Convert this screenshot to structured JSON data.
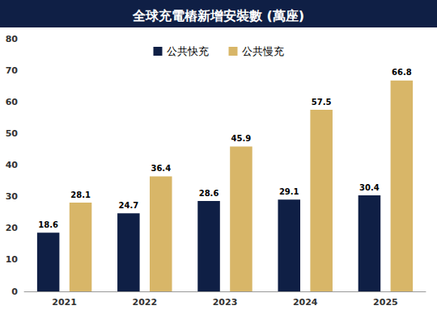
{
  "chart_data": {
    "type": "bar",
    "title": "全球充電樁新增安裝數 (萬座)",
    "categories": [
      "2021",
      "2022",
      "2023",
      "2024",
      "2025"
    ],
    "series": [
      {
        "name": "公共快充",
        "color": "#0f1f45",
        "values": [
          18.6,
          24.7,
          28.6,
          29.1,
          30.4
        ]
      },
      {
        "name": "公共慢充",
        "color": "#d8b668",
        "values": [
          28.1,
          36.4,
          45.9,
          57.5,
          66.8
        ]
      }
    ],
    "ylim": [
      0,
      80
    ],
    "yticks": [
      0,
      10,
      20,
      30,
      40,
      50,
      60,
      70,
      80
    ],
    "grid": false,
    "legend": "top",
    "data_labels": true
  }
}
